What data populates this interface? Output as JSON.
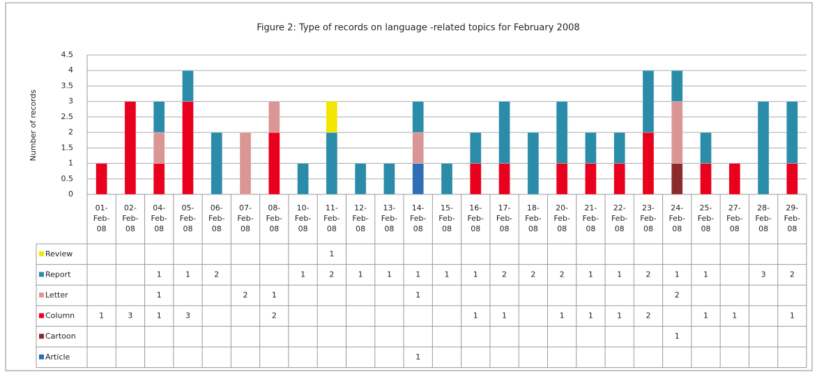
{
  "chart_data": {
    "type": "stacked_bar",
    "title": "Figure 2: Type of records on language -related topics for February 2008",
    "y_label": "Number of records",
    "categories": [
      "01-Feb-08",
      "02-Feb-08",
      "04-Feb-08",
      "05-Feb-08",
      "06-Feb-08",
      "07-Feb-08",
      "08-Feb-08",
      "10-Feb-08",
      "11-Feb-08",
      "12-Feb-08",
      "13-Feb-08",
      "14-Feb-08",
      "15-Feb-08",
      "16-Feb-08",
      "17-Feb-08",
      "18-Feb-08",
      "20-Feb-08",
      "21-Feb-08",
      "22-Feb-08",
      "23-Feb-08",
      "24-Feb-08",
      "25-Feb-08",
      "27-Feb-08",
      "28-Feb-08",
      "29-Feb-08"
    ],
    "series": [
      {
        "name": "Article",
        "color": "#2f6db5",
        "values": [
          null,
          null,
          null,
          null,
          null,
          null,
          null,
          null,
          null,
          null,
          null,
          1,
          null,
          null,
          null,
          null,
          null,
          null,
          null,
          null,
          null,
          null,
          null,
          null,
          null
        ]
      },
      {
        "name": "Cartoon",
        "color": "#8b2a2a",
        "values": [
          null,
          null,
          null,
          null,
          null,
          null,
          null,
          null,
          null,
          null,
          null,
          null,
          null,
          null,
          null,
          null,
          null,
          null,
          null,
          null,
          1,
          null,
          null,
          null,
          null
        ]
      },
      {
        "name": "Column",
        "color": "#e8001c",
        "values": [
          1,
          3,
          1,
          3,
          null,
          null,
          2,
          null,
          null,
          null,
          null,
          null,
          null,
          1,
          1,
          null,
          1,
          1,
          1,
          2,
          null,
          1,
          1,
          null,
          1
        ]
      },
      {
        "name": "Letter",
        "color": "#d99694",
        "values": [
          null,
          null,
          1,
          null,
          null,
          2,
          1,
          null,
          null,
          null,
          null,
          1,
          null,
          null,
          null,
          null,
          null,
          null,
          null,
          null,
          2,
          null,
          null,
          null,
          null
        ]
      },
      {
        "name": "Report",
        "color": "#2a8ca8",
        "values": [
          null,
          null,
          1,
          1,
          2,
          null,
          null,
          1,
          2,
          1,
          1,
          1,
          1,
          1,
          2,
          2,
          2,
          1,
          1,
          2,
          1,
          1,
          null,
          3,
          2
        ]
      },
      {
        "name": "Review",
        "color": "#f2e600",
        "values": [
          null,
          null,
          null,
          null,
          null,
          null,
          null,
          null,
          1,
          null,
          null,
          null,
          null,
          null,
          null,
          null,
          null,
          null,
          null,
          null,
          null,
          null,
          null,
          null,
          null
        ]
      }
    ],
    "ylim": [
      0,
      4.5
    ],
    "yticks": [
      0,
      0.5,
      1,
      1.5,
      2,
      2.5,
      3,
      3.5,
      4,
      4.5
    ],
    "grid": true
  }
}
